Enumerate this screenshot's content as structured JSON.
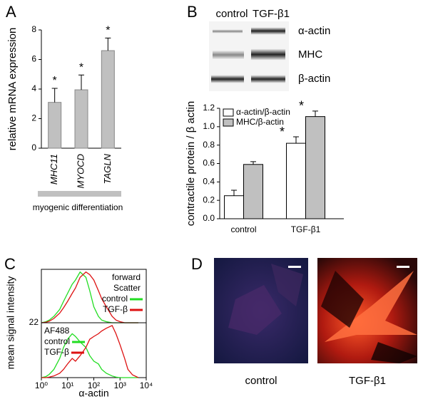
{
  "panel_labels": [
    "A",
    "B",
    "C",
    "D"
  ],
  "blot": {
    "columns": [
      "control",
      "TGF-β1"
    ],
    "rows": [
      "α-actin",
      "MHC",
      "β-actin"
    ]
  },
  "micrographs": {
    "captions": [
      "control",
      "TGF-β1"
    ]
  },
  "chart_data": [
    {
      "type": "bar",
      "ylabel": "relative mRNA expression",
      "categories": [
        "MHC11",
        "MYOCD",
        "TAGLN"
      ],
      "values": [
        3.1,
        3.95,
        6.6
      ],
      "errors": [
        0.95,
        1.0,
        0.85
      ],
      "significance": [
        "*",
        "*",
        "*"
      ],
      "color": "#c0c0c0",
      "ylim": [
        0,
        8
      ],
      "yticks": [
        0,
        2,
        4,
        6,
        8
      ],
      "group_label": "myogenic differentiation"
    },
    {
      "type": "grouped_bar",
      "ylabel": "contractile protein / β actin",
      "categories": [
        "control",
        "TGF-β1"
      ],
      "series": [
        {
          "name": "α-actin/β-actin",
          "color": "#ffffff",
          "values": [
            0.25,
            0.82
          ],
          "errors": [
            0.06,
            0.07
          ],
          "significance": [
            null,
            "*"
          ]
        },
        {
          "name": "MHC/β-actin",
          "color": "#c0c0c0",
          "values": [
            0.59,
            1.11
          ],
          "errors": [
            0.03,
            0.06
          ],
          "significance": [
            null,
            "*"
          ]
        }
      ],
      "ylim": [
        0,
        1.2
      ],
      "yticks": [
        {
          "value": 0,
          "label": "0.0"
        },
        0.2,
        0.4,
        0.6,
        0.8,
        {
          "value": 1,
          "label": "1.0"
        },
        1.2
      ],
      "legend": "upper left"
    },
    {
      "type": "line",
      "title": [
        "forward",
        "Scatter"
      ],
      "log_x": true,
      "legend": "upper right",
      "x": [
        1,
        1.5,
        2,
        3,
        5,
        7,
        10,
        15,
        20,
        30,
        50,
        70,
        100,
        150,
        200,
        300,
        500,
        700,
        1000,
        1500,
        2000,
        3000,
        5000
      ],
      "series": [
        {
          "name": "control",
          "color": "#22dd22",
          "values": [
            0,
            2,
            5,
            12,
            25,
            40,
            55,
            72,
            80,
            95,
            85,
            60,
            30,
            12,
            5,
            2,
            0,
            0,
            0,
            0,
            0,
            0,
            0
          ]
        },
        {
          "name": "TGF-β",
          "color": "#dd1111",
          "values": [
            0,
            1,
            3,
            8,
            18,
            28,
            40,
            55,
            65,
            85,
            95,
            90,
            80,
            60,
            45,
            30,
            12,
            5,
            2,
            0,
            0,
            0,
            0
          ]
        }
      ],
      "xlim": [
        1,
        10000
      ],
      "ylim": [
        0,
        100
      ]
    },
    {
      "type": "line",
      "title": [
        "AF488"
      ],
      "log_x": true,
      "legend": "upper left",
      "ylabel": "mean signal intensity",
      "xlabel": "α-actin",
      "annotation": "22",
      "x": [
        1,
        1.5,
        2,
        3,
        5,
        7,
        10,
        15,
        20,
        30,
        50,
        70,
        100,
        150,
        200,
        300,
        500,
        700,
        1000,
        1500,
        2000,
        3000,
        5000
      ],
      "series": [
        {
          "name": "control",
          "color": "#22dd22",
          "values": [
            0,
            2,
            6,
            15,
            35,
            55,
            70,
            80,
            75,
            65,
            55,
            40,
            30,
            25,
            15,
            8,
            3,
            1,
            0,
            0,
            0,
            0,
            0
          ]
        },
        {
          "name": "TGF-β",
          "color": "#dd1111",
          "values": [
            0,
            0,
            1,
            3,
            8,
            15,
            25,
            35,
            30,
            40,
            55,
            70,
            75,
            80,
            85,
            90,
            95,
            80,
            60,
            35,
            15,
            5,
            0
          ]
        }
      ],
      "xlim": [
        1,
        10000
      ],
      "ylim": [
        0,
        100
      ],
      "xticks": [
        {
          "value": 1,
          "label": "10⁰"
        },
        {
          "value": 10,
          "label": "10¹"
        },
        {
          "value": 100,
          "label": "10²"
        },
        {
          "value": 1000,
          "label": "10³"
        },
        {
          "value": 10000,
          "label": "10⁴"
        }
      ]
    }
  ]
}
